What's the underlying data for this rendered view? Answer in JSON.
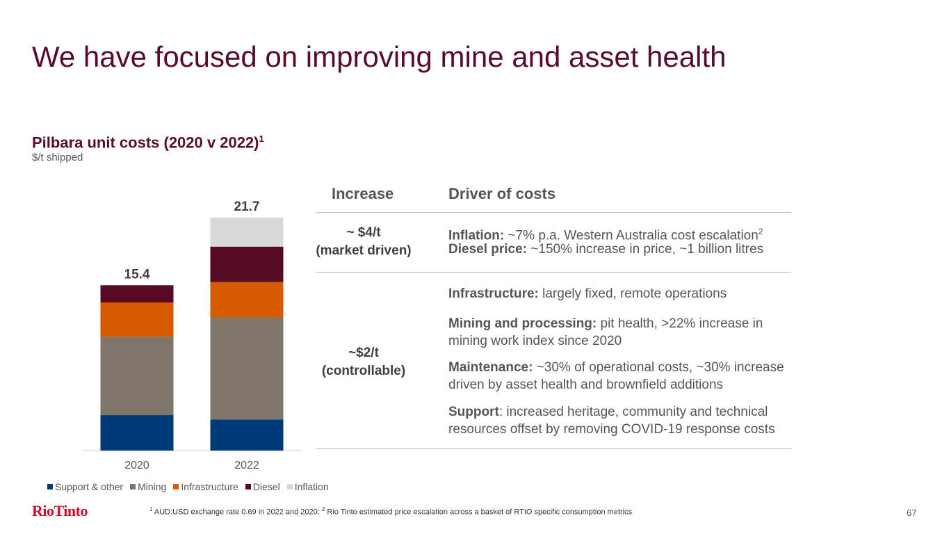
{
  "slide": {
    "title": "We have focused on improving mine and asset health",
    "page_number": "67",
    "logo_text": "RioTinto"
  },
  "chart_data": {
    "type": "bar",
    "stacked": true,
    "title": "Pilbara unit costs (2020 v 2022)",
    "title_footnote": "1",
    "subtitle": "$/t shipped",
    "categories": [
      "2020",
      "2022"
    ],
    "totals": [
      "15.4",
      "21.7"
    ],
    "series": [
      {
        "name": "Support & other",
        "color": "#003a78",
        "values": [
          3.3,
          2.9
        ]
      },
      {
        "name": "Mining",
        "color": "#7f7669",
        "values": [
          7.3,
          9.5
        ]
      },
      {
        "name": "Infrastructure",
        "color": "#d65a00",
        "values": [
          3.2,
          3.3
        ]
      },
      {
        "name": "Diesel",
        "color": "#570a23",
        "values": [
          1.6,
          3.3
        ]
      },
      {
        "name": "Inflation",
        "color": "#d9d9d9",
        "values": [
          0,
          2.7
        ]
      }
    ],
    "ylim": [
      0,
      21.7
    ],
    "legend": "bottom-left"
  },
  "table": {
    "header_increase": "Increase",
    "header_driver": "Driver of costs",
    "rows": [
      {
        "increase_line1": "~ $4/t",
        "increase_line2": "(market driven)",
        "drivers": [
          {
            "label": "Inflation:",
            "text": " ~7% p.a. Western Australia cost escalation",
            "sup": "2"
          },
          {
            "label": "Diesel price:",
            "text": " ~150% increase in price, ~1 billion litres"
          }
        ]
      },
      {
        "increase_line1": "~$2/t",
        "increase_line2": "(controllable)",
        "drivers": [
          {
            "label": "Infrastructure:",
            "text": " largely fixed, remote operations"
          },
          {
            "label": "Mining and processing:",
            "text": " pit health, >22% increase in mining work index since 2020"
          },
          {
            "label": "Maintenance:",
            "text": " ~30% of operational costs, ~30% increase driven by asset health and brownfield additions"
          },
          {
            "label": "Support",
            "text": ": increased heritage, community and technical resources offset by removing COVID-19 response costs"
          }
        ]
      }
    ]
  },
  "footnote": {
    "sup1": "1",
    "text1": " AUD:USD exchange rate 0.69 in 2022 and 2020; ",
    "sup2": "2",
    "text2": " Rio Tinto estimated price escalation across a basket of RTIO specific consumption metrics"
  }
}
